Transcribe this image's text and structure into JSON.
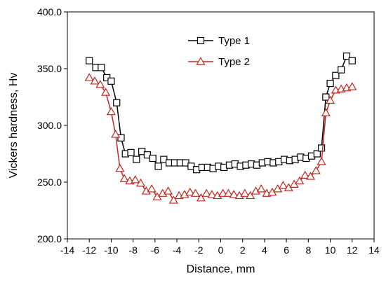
{
  "chart_data": {
    "type": "line",
    "xlabel": "Distance, mm",
    "ylabel": "Vickers hardness, Hv",
    "xlim": [
      -14,
      14
    ],
    "ylim": [
      200,
      400
    ],
    "x_ticks": [
      -14,
      -12,
      -10,
      -8,
      -6,
      -4,
      -2,
      0,
      2,
      4,
      6,
      8,
      10,
      12,
      14
    ],
    "y_ticks": [
      200,
      250,
      300,
      350,
      400
    ],
    "x_tick_labels": [
      "-14",
      "-12",
      "-10",
      "-8",
      "-6",
      "-4",
      "-2",
      "0",
      "2",
      "4",
      "6",
      "8",
      "10",
      "12",
      "14"
    ],
    "y_tick_labels": [
      "200.0",
      "250.0",
      "300.0",
      "350.0",
      "400.0"
    ],
    "grid": false,
    "legend_position": "top-center",
    "series": [
      {
        "name": "Type 1",
        "color": "#000000",
        "marker": "square",
        "x": [
          -12.0,
          -11.4,
          -10.9,
          -10.4,
          -10.0,
          -9.5,
          -9.1,
          -8.7,
          -8.2,
          -7.7,
          -7.2,
          -6.7,
          -6.2,
          -5.7,
          -5.2,
          -4.7,
          -4.2,
          -3.7,
          -3.2,
          -2.7,
          -2.2,
          -1.7,
          -1.2,
          -0.7,
          -0.2,
          0.3,
          0.8,
          1.3,
          1.8,
          2.3,
          2.8,
          3.3,
          3.8,
          4.3,
          4.8,
          5.3,
          5.8,
          6.3,
          6.8,
          7.3,
          7.8,
          8.3,
          8.8,
          9.2,
          9.6,
          10.0,
          10.5,
          11.0,
          11.5,
          12.0
        ],
        "values": [
          357,
          351,
          351,
          342,
          339,
          320,
          289,
          275,
          276,
          270,
          277,
          274,
          271,
          264,
          270,
          267,
          267,
          267,
          267,
          264,
          261,
          263,
          263,
          262,
          264,
          263,
          265,
          266,
          264,
          265,
          266,
          265,
          267,
          268,
          267,
          268,
          270,
          269,
          270,
          272,
          271,
          273,
          275,
          280,
          325,
          337,
          344,
          349,
          361,
          357
        ]
      },
      {
        "name": "Type 2",
        "color": "#c0281e",
        "marker": "triangle",
        "x": [
          -12.0,
          -11.5,
          -11.0,
          -10.5,
          -10.0,
          -9.6,
          -9.2,
          -8.8,
          -8.3,
          -7.8,
          -7.3,
          -6.8,
          -6.3,
          -5.8,
          -5.3,
          -4.8,
          -4.3,
          -3.8,
          -3.3,
          -2.8,
          -2.3,
          -1.8,
          -1.3,
          -0.8,
          -0.3,
          0.2,
          0.7,
          1.2,
          1.7,
          2.2,
          2.7,
          3.2,
          3.7,
          4.2,
          4.7,
          5.2,
          5.7,
          6.2,
          6.7,
          7.2,
          7.7,
          8.2,
          8.7,
          9.2,
          9.6,
          10.0,
          10.5,
          11.0,
          11.5,
          12.0
        ],
        "values": [
          342,
          339,
          336,
          329,
          312,
          292,
          262,
          253,
          251,
          252,
          249,
          242,
          244,
          237,
          240,
          242,
          234,
          238,
          239,
          241,
          240,
          236,
          240,
          239,
          238,
          240,
          240,
          239,
          238,
          240,
          238,
          242,
          244,
          240,
          241,
          244,
          247,
          245,
          248,
          251,
          256,
          255,
          260,
          268,
          311,
          322,
          331,
          332,
          333,
          334
        ]
      }
    ]
  }
}
